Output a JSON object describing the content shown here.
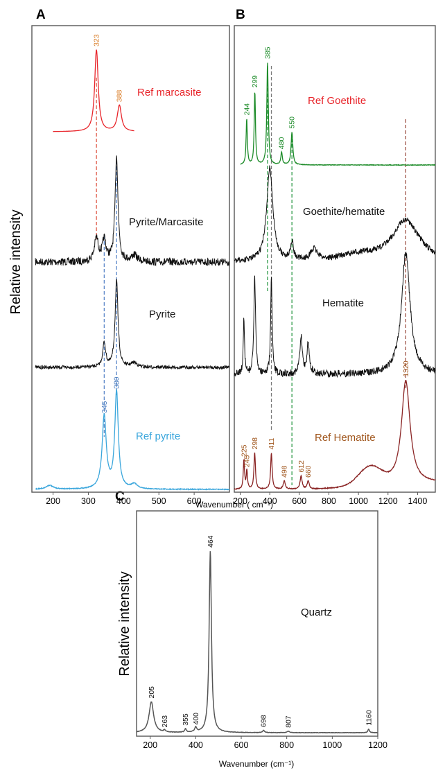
{
  "colors": {
    "marcasite": "#e8242a",
    "marcasite_peaks": "#d97a22",
    "pyrite_ref": "#3aa6dc",
    "pyrite_ref_peaks": "#4b7ec0",
    "goethite": "#1e8c2a",
    "hematite_ref": "#8a2424",
    "hematite_ref_label": "#a0561d",
    "measured": "#111111",
    "quartz": "#555555",
    "guide_red": "#e05a4a",
    "guide_blue": "#5a86c8",
    "guide_green": "#2e9a48",
    "guide_brown": "#a0564a",
    "guide_gray": "#777777"
  },
  "panels": {
    "A": {
      "letter": "A"
    },
    "B": {
      "letter": "B"
    },
    "C": {
      "letter": "C"
    }
  },
  "shared": {
    "ylabel": "Relative intensity",
    "xlabel_ab": "Wavenumber  ( cm⁻¹)",
    "xlabel_c": "Wavenumber (cm⁻¹)"
  },
  "chart_data": [
    {
      "panel": "A",
      "type": "line",
      "xlabel": "Wavenumber (cm⁻¹)",
      "ylabel": "Relative intensity",
      "xlim": [
        140,
        700
      ],
      "xticks": [
        200,
        300,
        400,
        500,
        600
      ],
      "grid": false,
      "series": [
        {
          "name": "Ref marcasite",
          "kind": "reference",
          "xrange": [
            200,
            430
          ],
          "peaks": [
            {
              "x": 323,
              "height": 1.0,
              "width": 6
            },
            {
              "x": 388,
              "height": 0.32,
              "width": 7
            }
          ],
          "peak_labels": [
            "323",
            "388"
          ]
        },
        {
          "name": "Pyrite/Marcasite",
          "kind": "measured",
          "xrange": [
            150,
            700
          ],
          "peaks": [
            {
              "x": 323,
              "height": 0.22,
              "width": 7
            },
            {
              "x": 345,
              "height": 0.2,
              "width": 6
            },
            {
              "x": 380,
              "height": 1.0,
              "width": 5
            },
            {
              "x": 430,
              "height": 0.06,
              "width": 10
            }
          ]
        },
        {
          "name": "Pyrite",
          "kind": "measured",
          "xrange": [
            150,
            700
          ],
          "peaks": [
            {
              "x": 345,
              "height": 0.28,
              "width": 5
            },
            {
              "x": 380,
              "height": 1.0,
              "width": 5
            },
            {
              "x": 430,
              "height": 0.05,
              "width": 10
            }
          ]
        },
        {
          "name": "Ref pyrite",
          "kind": "reference",
          "xrange": [
            150,
            700
          ],
          "peaks": [
            {
              "x": 345,
              "height": 0.75,
              "width": 7
            },
            {
              "x": 380,
              "height": 1.0,
              "width": 6
            },
            {
              "x": 190,
              "height": 0.04,
              "width": 12
            },
            {
              "x": 430,
              "height": 0.05,
              "width": 10
            }
          ],
          "peak_labels": [
            "345",
            "380"
          ]
        }
      ],
      "guide_lines": [
        323,
        345,
        380
      ]
    },
    {
      "panel": "B",
      "type": "line",
      "xlim": [
        160,
        1520
      ],
      "xticks": [
        200,
        400,
        600,
        800,
        1000,
        1200,
        1400
      ],
      "grid": false,
      "series": [
        {
          "name": "Ref Goethite",
          "kind": "reference",
          "xrange": [
            200,
            1520
          ],
          "peaks": [
            {
              "x": 244,
              "height": 0.45,
              "width": 5
            },
            {
              "x": 299,
              "height": 0.72,
              "width": 5
            },
            {
              "x": 385,
              "height": 1.0,
              "width": 6
            },
            {
              "x": 480,
              "height": 0.12,
              "width": 6
            },
            {
              "x": 550,
              "height": 0.32,
              "width": 7
            }
          ],
          "peak_labels": [
            "244",
            "299",
            "385",
            "480",
            "550"
          ]
        },
        {
          "name": "Goethite/hematite",
          "kind": "measured",
          "xrange": [
            160,
            1520
          ],
          "peaks": [
            {
              "x": 400,
              "height": 1.0,
              "width": 25
            },
            {
              "x": 550,
              "height": 0.2,
              "width": 12
            },
            {
              "x": 700,
              "height": 0.12,
              "width": 30
            },
            {
              "x": 1320,
              "height": 0.45,
              "width": 110
            }
          ]
        },
        {
          "name": "Hematite",
          "kind": "measured",
          "xrange": [
            160,
            1520
          ],
          "peaks": [
            {
              "x": 225,
              "height": 0.45,
              "width": 5
            },
            {
              "x": 298,
              "height": 0.8,
              "width": 7
            },
            {
              "x": 411,
              "height": 0.8,
              "width": 6
            },
            {
              "x": 612,
              "height": 0.3,
              "width": 10
            },
            {
              "x": 660,
              "height": 0.25,
              "width": 10
            },
            {
              "x": 1320,
              "height": 1.0,
              "width": 35
            }
          ]
        },
        {
          "name": "Ref Hematite",
          "kind": "reference",
          "xrange": [
            160,
            1520
          ],
          "peaks": [
            {
              "x": 225,
              "height": 0.28,
              "width": 5
            },
            {
              "x": 245,
              "height": 0.18,
              "width": 5
            },
            {
              "x": 298,
              "height": 0.35,
              "width": 6
            },
            {
              "x": 411,
              "height": 0.35,
              "width": 6
            },
            {
              "x": 498,
              "height": 0.08,
              "width": 8
            },
            {
              "x": 612,
              "height": 0.13,
              "width": 8
            },
            {
              "x": 660,
              "height": 0.08,
              "width": 8
            },
            {
              "x": 1320,
              "height": 1.0,
              "width": 35
            }
          ],
          "peak_labels": [
            "225",
            "245",
            "298",
            "411",
            "498",
            "612",
            "660",
            "1320"
          ]
        }
      ],
      "guide_lines": [
        385,
        411,
        550,
        1320
      ]
    },
    {
      "panel": "C",
      "type": "line",
      "xlabel": "Wavenumber (cm⁻¹)",
      "ylabel": "Relative intensity",
      "xlim": [
        140,
        1200
      ],
      "xticks": [
        200,
        400,
        600,
        800,
        1000,
        1200
      ],
      "grid": false,
      "series": [
        {
          "name": "Quartz",
          "kind": "reference",
          "xrange": [
            140,
            1200
          ],
          "peaks": [
            {
              "x": 205,
              "height": 0.17,
              "width": 12
            },
            {
              "x": 263,
              "height": 0.01,
              "width": 5
            },
            {
              "x": 355,
              "height": 0.02,
              "width": 4
            },
            {
              "x": 400,
              "height": 0.025,
              "width": 5
            },
            {
              "x": 464,
              "height": 1.0,
              "width": 6
            },
            {
              "x": 698,
              "height": 0.012,
              "width": 5
            },
            {
              "x": 807,
              "height": 0.008,
              "width": 6
            },
            {
              "x": 1160,
              "height": 0.02,
              "width": 4
            }
          ],
          "peak_labels": [
            "205",
            "263",
            "355",
            "400",
            "464",
            "698",
            "807",
            "1160"
          ]
        }
      ]
    }
  ]
}
